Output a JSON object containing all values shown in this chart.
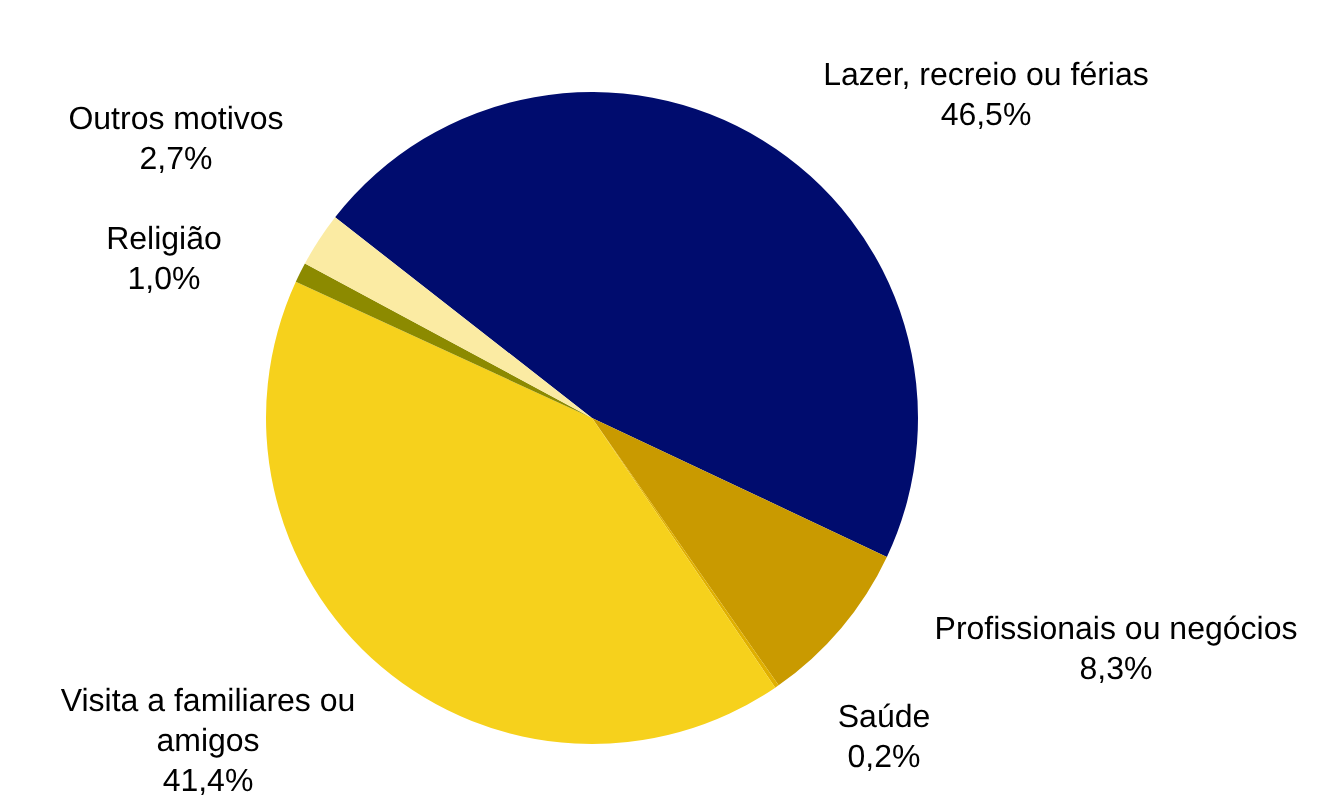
{
  "chart_data": {
    "type": "pie",
    "categories": [
      "Lazer, recreio ou férias",
      "Profissionais ou negócios",
      "Saúde",
      "Visita a familiares ou amigos",
      "Religião",
      "Outros motivos"
    ],
    "values": [
      46.5,
      8.3,
      0.2,
      41.4,
      1.0,
      2.7
    ],
    "value_labels": [
      "46,5%",
      "8,3%",
      "0,2%",
      "41,4%",
      "1,0%",
      "2,7%"
    ],
    "colors": [
      "#000c6e",
      "#c99a00",
      "#e0b000",
      "#f6d11c",
      "#8c8a00",
      "#fbeba3"
    ],
    "legend": false
  }
}
